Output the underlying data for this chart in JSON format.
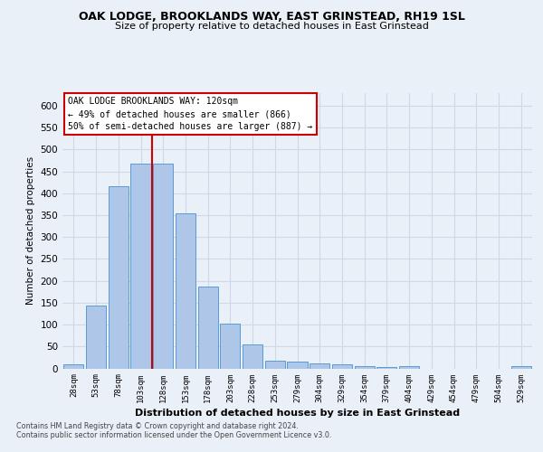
{
  "title": "OAK LODGE, BROOKLANDS WAY, EAST GRINSTEAD, RH19 1SL",
  "subtitle": "Size of property relative to detached houses in East Grinstead",
  "xlabel": "Distribution of detached houses by size in East Grinstead",
  "ylabel": "Number of detached properties",
  "footnote1": "Contains HM Land Registry data © Crown copyright and database right 2024.",
  "footnote2": "Contains public sector information licensed under the Open Government Licence v3.0.",
  "bar_labels": [
    "28sqm",
    "53sqm",
    "78sqm",
    "103sqm",
    "128sqm",
    "153sqm",
    "178sqm",
    "203sqm",
    "228sqm",
    "253sqm",
    "279sqm",
    "304sqm",
    "329sqm",
    "354sqm",
    "379sqm",
    "404sqm",
    "429sqm",
    "454sqm",
    "479sqm",
    "504sqm",
    "529sqm"
  ],
  "bar_values": [
    10,
    143,
    416,
    468,
    468,
    354,
    187,
    103,
    54,
    18,
    15,
    12,
    10,
    5,
    4,
    6,
    0,
    0,
    0,
    0,
    5
  ],
  "bar_color": "#aec6e8",
  "bar_edge_color": "#5b9bd5",
  "grid_color": "#d0d8e8",
  "bg_color": "#eaf0f8",
  "red_line_index": 4,
  "annotation_line1": "OAK LODGE BROOKLANDS WAY: 120sqm",
  "annotation_line2": "← 49% of detached houses are smaller (866)",
  "annotation_line3": "50% of semi-detached houses are larger (887) →",
  "annotation_box_color": "#ffffff",
  "annotation_box_edge": "#cc0000",
  "ylim_max": 630,
  "yticks": [
    0,
    50,
    100,
    150,
    200,
    250,
    300,
    350,
    400,
    450,
    500,
    550,
    600
  ]
}
